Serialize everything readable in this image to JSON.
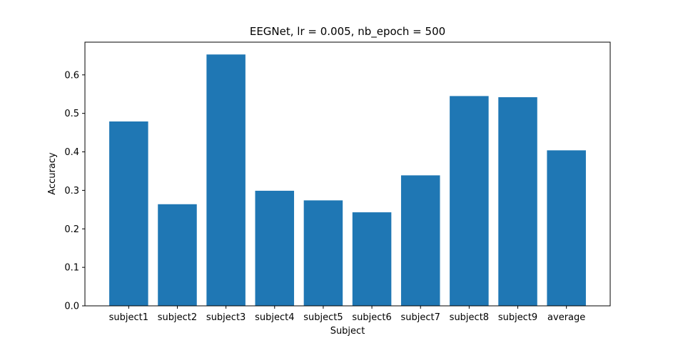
{
  "chart_data": {
    "type": "bar",
    "title": "EEGNet, lr = 0.005, nb_epoch = 500",
    "xlabel": "Subject",
    "ylabel": "Accuracy",
    "categories": [
      "subject1",
      "subject2",
      "subject3",
      "subject4",
      "subject5",
      "subject6",
      "subject7",
      "subject8",
      "subject9",
      "average"
    ],
    "values": [
      0.479,
      0.264,
      0.653,
      0.299,
      0.274,
      0.243,
      0.339,
      0.545,
      0.542,
      0.404
    ],
    "ylim": [
      0,
      0.685
    ],
    "yticks": [
      "0.0",
      "0.1",
      "0.2",
      "0.3",
      "0.4",
      "0.5",
      "0.6"
    ],
    "bar_color": "#1f77b4",
    "grid": false,
    "legend": "none"
  }
}
